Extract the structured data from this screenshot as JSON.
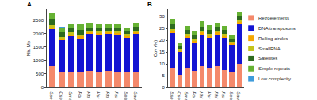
{
  "chart_data": [
    {
      "type": "bar",
      "title": "A",
      "y_label": "Nb. Mb",
      "stacked": true,
      "grid": false,
      "categories": [
        "Sse",
        "Cse",
        "Sma",
        "Pol",
        "Hhi",
        "Hst",
        "Rhi",
        "Pst",
        "Sea",
        "Sau"
      ],
      "ylim": [
        0,
        2900
      ],
      "yticks": [
        0,
        500,
        1000,
        1500,
        2000,
        2500
      ],
      "series": [
        {
          "name": "Retroelements",
          "color": "#f4896b",
          "values": [
            780,
            600,
            600,
            590,
            620,
            600,
            620,
            590,
            570,
            600
          ]
        },
        {
          "name": "DNA transposons",
          "color": "#1414d2",
          "values": [
            1400,
            1150,
            1300,
            1240,
            1360,
            1350,
            1360,
            1360,
            1280,
            1380
          ]
        },
        {
          "name": "Rolling-circles",
          "color": "#f5a700",
          "values": [
            60,
            50,
            60,
            60,
            60,
            60,
            60,
            60,
            60,
            60
          ]
        },
        {
          "name": "SmallRNA",
          "color": "#c4c41a",
          "values": [
            80,
            70,
            80,
            80,
            80,
            80,
            80,
            80,
            70,
            80
          ]
        },
        {
          "name": "Satellites",
          "color": "#2e6b1e",
          "values": [
            230,
            180,
            150,
            180,
            120,
            130,
            110,
            130,
            90,
            130
          ]
        },
        {
          "name": "Simple repeats",
          "color": "#66b233",
          "values": [
            190,
            190,
            180,
            190,
            150,
            150,
            140,
            150,
            120,
            140
          ]
        },
        {
          "name": "Low complexity",
          "color": "#3e9bdb",
          "values": [
            10,
            10,
            10,
            10,
            10,
            10,
            10,
            10,
            10,
            10
          ]
        }
      ]
    },
    {
      "type": "bar",
      "title": "B",
      "y_label": "Cov (%)",
      "stacked": true,
      "grid": false,
      "legend": "right",
      "categories": [
        "Sse",
        "Cse",
        "Sma",
        "Pol",
        "Hhi",
        "Hst",
        "Rhi",
        "Pst",
        "Sea",
        "Sau"
      ],
      "ylim": [
        0,
        33
      ],
      "yticks": [
        0,
        5,
        10,
        15,
        20,
        25,
        30
      ],
      "series": [
        {
          "name": "Retroelements",
          "color": "#f4896b",
          "values": [
            8.5,
            5.5,
            8.5,
            7,
            9,
            8.5,
            9,
            7.5,
            6.5,
            10
          ]
        },
        {
          "name": "DNA transposons",
          "color": "#1414d2",
          "values": [
            14.5,
            9.5,
            12.5,
            12,
            13.5,
            12.5,
            13.5,
            13.5,
            11.5,
            17
          ]
        },
        {
          "name": "Rolling-circles",
          "color": "#f5a700",
          "values": [
            0.7,
            0.5,
            0.7,
            0.6,
            0.7,
            0.7,
            0.7,
            0.7,
            0.6,
            0.8
          ]
        },
        {
          "name": "SmallRNA",
          "color": "#c4c41a",
          "values": [
            0.9,
            0.7,
            0.9,
            0.8,
            0.9,
            0.9,
            0.9,
            0.9,
            0.8,
            1
          ]
        },
        {
          "name": "Satellites",
          "color": "#2e6b1e",
          "values": [
            2.4,
            1.3,
            1.6,
            1.7,
            1.7,
            1.8,
            1.5,
            1.6,
            1.4,
            1.6
          ]
        },
        {
          "name": "Simple repeats",
          "color": "#66b233",
          "values": [
            2.0,
            1.4,
            1.7,
            1.8,
            2.1,
            2.0,
            1.8,
            1.7,
            1.6,
            1.6
          ]
        },
        {
          "name": "Low complexity",
          "color": "#3e9bdb",
          "values": [
            0.1,
            0.1,
            0.1,
            0.1,
            0.1,
            0.1,
            0.1,
            0.1,
            0.1,
            0.1
          ]
        }
      ]
    }
  ]
}
